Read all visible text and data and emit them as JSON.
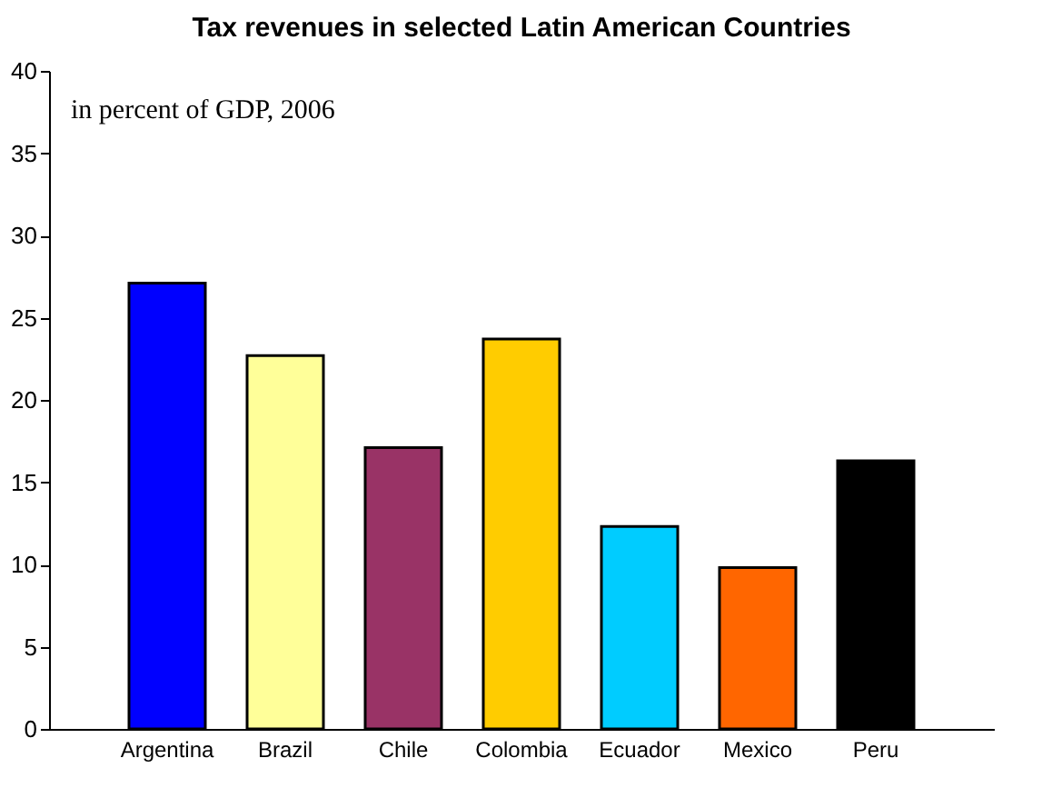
{
  "chart_data": {
    "type": "bar",
    "title": "Tax revenues in selected Latin American Countries",
    "annotations": [
      "in percent of GDP, 2006"
    ],
    "categories": [
      "Argentina",
      "Brazil",
      "Chile",
      "Colombia",
      "Ecuador",
      "Mexico",
      "Peru"
    ],
    "values": [
      27.1,
      22.7,
      17.1,
      23.7,
      12.3,
      9.8,
      16.3
    ],
    "colors": [
      "#0000ff",
      "#ffff99",
      "#993366",
      "#ffcc00",
      "#00ccff",
      "#ff6600",
      "#000000"
    ],
    "ylim": [
      0,
      40
    ],
    "yticks": [
      0,
      5,
      10,
      15,
      20,
      25,
      30,
      35,
      40
    ],
    "grid": false,
    "legend": false
  }
}
